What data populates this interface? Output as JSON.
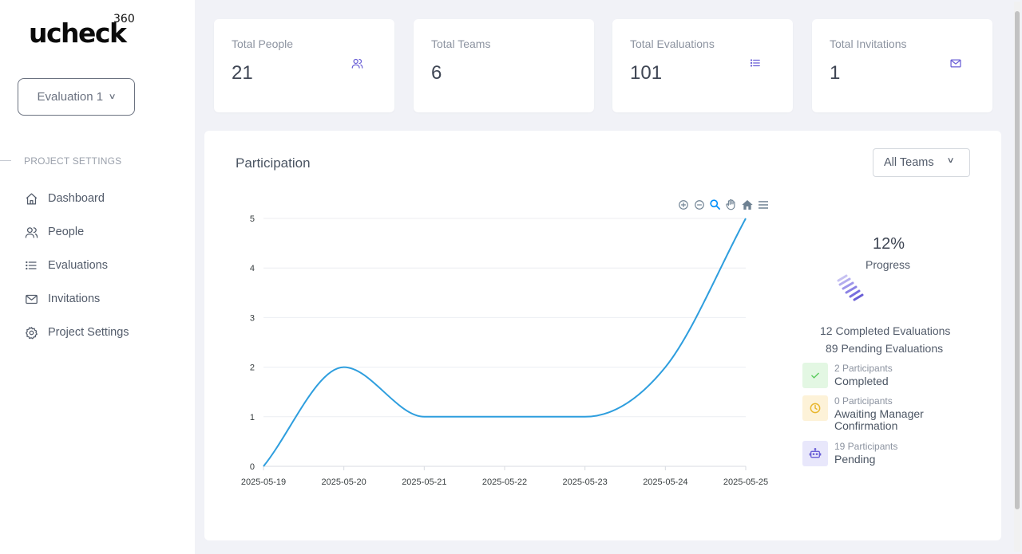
{
  "brand": {
    "logo_text": "ucheck",
    "logo_sup": "360"
  },
  "sidebar": {
    "evaluation_select": "Evaluation 1",
    "section_title": "PROJECT SETTINGS",
    "items": [
      {
        "label": "Dashboard",
        "icon": "home-icon"
      },
      {
        "label": "People",
        "icon": "people-icon"
      },
      {
        "label": "Evaluations",
        "icon": "list-icon"
      },
      {
        "label": "Invitations",
        "icon": "mail-icon"
      },
      {
        "label": "Project Settings",
        "icon": "gear-icon"
      }
    ]
  },
  "stats": [
    {
      "label": "Total People",
      "value": "21",
      "icon": "people-icon"
    },
    {
      "label": "Total Teams",
      "value": "6",
      "icon": ""
    },
    {
      "label": "Total Evaluations",
      "value": "101",
      "icon": "list-icon"
    },
    {
      "label": "Total Invitations",
      "value": "1",
      "icon": "mail-icon"
    }
  ],
  "panel": {
    "title": "Participation",
    "team_filter": "All Teams",
    "toolbar": [
      "zoom-in-icon",
      "zoom-out-icon",
      "zoom-select-icon",
      "pan-icon",
      "reset-home-icon",
      "menu-icon"
    ]
  },
  "chart_data": {
    "type": "line",
    "title": "",
    "xlabel": "",
    "ylabel": "",
    "x": [
      "2025-05-19",
      "2025-05-20",
      "2025-05-21",
      "2025-05-22",
      "2025-05-23",
      "2025-05-24",
      "2025-05-25"
    ],
    "series": [
      {
        "values": [
          0,
          2,
          1,
          1,
          1,
          2,
          5
        ]
      }
    ],
    "ylim": [
      0,
      5
    ],
    "yticks": [
      "0",
      "1",
      "2",
      "3",
      "4",
      "5"
    ],
    "grid": true,
    "color": "#2e9ede",
    "curve": "smooth"
  },
  "progress": {
    "percent": "12%",
    "label": "Progress",
    "completed_text": "12 Completed Evaluations",
    "pending_text": "89 Pending Evaluations",
    "rows": [
      {
        "sub": "2 Participants",
        "main": "Completed",
        "icon": "check-icon",
        "bg": "#e3f7e3",
        "color": "#5ccb5f"
      },
      {
        "sub": "0 Participants",
        "main": "Awaiting Manager Confirmation",
        "icon": "clock-icon",
        "bg": "#fdf2d8",
        "color": "#e8b62c"
      },
      {
        "sub": "19 Participants",
        "main": "Pending",
        "icon": "robot-icon",
        "bg": "#e8e7fb",
        "color": "#6a5fd6"
      }
    ]
  }
}
